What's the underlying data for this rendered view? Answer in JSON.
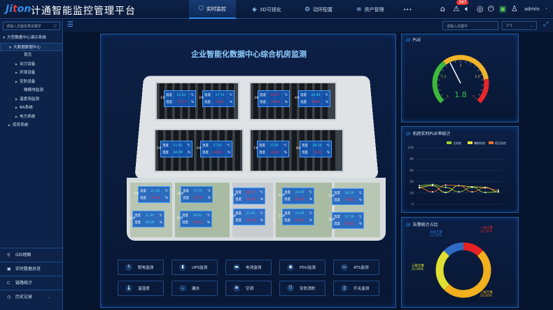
{
  "header": {
    "logo": "Jiton",
    "title": "计通智能监控管理平台",
    "nav": [
      {
        "label": "实时监控",
        "icon": "lightning-shield-icon",
        "active": true
      },
      {
        "label": "3D可视化",
        "icon": "cube-icon"
      },
      {
        "label": "动环配置",
        "icon": "gear-icon"
      },
      {
        "label": "资产管理",
        "icon": "layers-icon"
      },
      {
        "label": "•••",
        "icon": "more-icon"
      }
    ],
    "alarm_count": "387",
    "user": "admin"
  },
  "sidebar": {
    "search_placeholder": "请输入页面名称关键字",
    "tree": [
      {
        "label": "大型数据中心演示系统",
        "level": 0,
        "arrow": "▼"
      },
      {
        "label": "大数据数据中心",
        "level": 1,
        "arrow": "▼",
        "selected": true
      },
      {
        "label": "首页",
        "level": 2,
        "arrow": ""
      },
      {
        "label": "动力设备",
        "level": 2,
        "arrow": "▶"
      },
      {
        "label": "环境设备",
        "level": 2,
        "arrow": "▶"
      },
      {
        "label": "安防设备",
        "level": 2,
        "arrow": "▶"
      },
      {
        "label": "微模块监测",
        "level": 2,
        "arrow": ""
      },
      {
        "label": "温度场监测",
        "level": 2,
        "arrow": "▶"
      },
      {
        "label": "BA系统",
        "level": 2,
        "arrow": "▶"
      },
      {
        "label": "电力系统",
        "level": 2,
        "arrow": "▶"
      },
      {
        "label": "库房系统",
        "level": 1,
        "arrow": "▶"
      }
    ],
    "bottom": [
      {
        "label": "GIS地图",
        "icon": "map-pin-icon"
      },
      {
        "label": "实时数据总览",
        "icon": "monitor-icon"
      },
      {
        "label": "链路统计",
        "icon": "link-icon"
      },
      {
        "label": "历史记录",
        "icon": "clock-icon"
      }
    ]
  },
  "toolbar": {
    "keyword_placeholder": "请输入关键字",
    "select_value": "1*1"
  },
  "main": {
    "title": "企业智能化数据中心综合机房监测",
    "temp_label": "温度",
    "hum_label": "湿度",
    "temp_unit": "℃",
    "hum_unit": "%",
    "rooms": [
      {
        "id": "1#",
        "temp": "21.63",
        "hum": "75.53",
        "temp_alarm": false,
        "hum_alarm": true
      },
      {
        "id": "2#",
        "temp": "27.70",
        "hum": "62.01",
        "temp_alarm": false,
        "hum_alarm": true
      },
      {
        "id": "3#",
        "temp": "38.67",
        "hum": "56.60",
        "temp_alarm": true,
        "hum_alarm": true
      },
      {
        "id": "4#",
        "temp": "24.69",
        "hum": "66.01",
        "temp_alarm": false,
        "hum_alarm": true
      },
      {
        "id": "5#",
        "temp": "21.95",
        "hum": "66.09",
        "temp_alarm": false,
        "hum_alarm": false
      },
      {
        "id": "6#",
        "temp": "27.91",
        "hum": "66.65",
        "temp_alarm": false,
        "hum_alarm": true
      },
      {
        "id": "7#",
        "temp": "25.95",
        "hum": "58.58",
        "temp_alarm": false,
        "hum_alarm": true
      },
      {
        "id": "8#",
        "temp": "28.59",
        "hum": "78.61",
        "temp_alarm": false,
        "hum_alarm": true
      },
      {
        "id": "9#",
        "temp": "21.63",
        "hum": "76.18",
        "temp_alarm": false,
        "hum_alarm": true
      },
      {
        "id": "10#",
        "temp": "27.70",
        "hum": "62.01",
        "temp_alarm": false,
        "hum_alarm": true
      },
      {
        "id": "11#",
        "temp": "28.67",
        "hum": "55.60",
        "temp_alarm": true,
        "hum_alarm": true
      },
      {
        "id": "12#",
        "temp": "24.69",
        "hum": "62.01",
        "temp_alarm": false,
        "hum_alarm": true
      },
      {
        "id": "13#",
        "temp": "28.59",
        "hum": "78.61",
        "temp_alarm": false,
        "hum_alarm": true
      },
      {
        "id": "14#",
        "temp": "21.95",
        "hum": "66.09",
        "temp_alarm": false,
        "hum_alarm": false
      },
      {
        "id": "15#",
        "temp": "28.61",
        "hum": "60.01",
        "temp_alarm": false,
        "hum_alarm": true
      },
      {
        "id": "16#",
        "temp": "25.95",
        "hum": "55.58",
        "temp_alarm": false,
        "hum_alarm": true
      },
      {
        "id": "17#",
        "temp": "23.59",
        "hum": "62.01",
        "temp_alarm": false,
        "hum_alarm": true
      },
      {
        "id": "18#",
        "temp": "27.79",
        "hum": "65.61",
        "temp_alarm": false,
        "hum_alarm": true
      }
    ],
    "buttons": [
      {
        "label": "配电监测",
        "icon": "lightning-icon"
      },
      {
        "label": "UPS监测",
        "icon": "battery-icon"
      },
      {
        "label": "电池监测",
        "icon": "battery-box-icon"
      },
      {
        "label": "PDU监测",
        "icon": "socket-icon"
      },
      {
        "label": "ATS监测",
        "icon": "switch-box-icon"
      },
      {
        "label": "温湿度",
        "icon": "thermometer-icon"
      },
      {
        "label": "漏水",
        "icon": "water-drop-icon"
      },
      {
        "label": "空调",
        "icon": "fan-icon"
      },
      {
        "label": "安防消防",
        "icon": "shield-icon"
      },
      {
        "label": "开关监测",
        "icon": "switch-icon"
      }
    ]
  },
  "pue": {
    "title": "PUE",
    "value": 1.8,
    "min": 1,
    "max": 3,
    "ticks": [
      "1",
      "1.5",
      "2",
      "2.5",
      "3"
    ],
    "colors": {
      "good": "#3fb93a",
      "warn": "#f0b428",
      "bad": "#e8262a"
    }
  },
  "chart_data": [
    {
      "type": "line",
      "title": "机房实时PUE率统计",
      "ylim": [
        0,
        100
      ],
      "yticks": [
        0,
        20,
        40,
        60,
        80,
        100
      ],
      "grid": true,
      "legend": "top-right",
      "series": [
        {
          "name": "主机房",
          "color": "#8fd12c",
          "values": [
            33,
            35,
            30,
            22,
            30,
            21,
            22
          ]
        },
        {
          "name": "辅助机房",
          "color": "#e8e23a",
          "values": [
            30,
            33,
            21,
            33,
            31,
            30,
            22
          ]
        },
        {
          "name": "低压机房",
          "color": "#e8702a",
          "values": [
            29,
            22,
            34,
            33,
            22,
            29,
            25
          ]
        }
      ]
    },
    {
      "type": "pie",
      "title": "告警统计占比",
      "donut": true,
      "slices": [
        {
          "name": "一级告警",
          "value": 12.5,
          "label": "12.50%",
          "color": "#e52323"
        },
        {
          "name": "二级告警",
          "value": 50,
          "label": "50.00%",
          "color": "#f2b01e"
        },
        {
          "name": "三级告警",
          "value": 25,
          "label": "25.00%",
          "color": "#dfe033"
        },
        {
          "name": "四级告警",
          "value": 12.5,
          "label": "12.50%",
          "color": "#2e6cc4"
        }
      ]
    }
  ]
}
